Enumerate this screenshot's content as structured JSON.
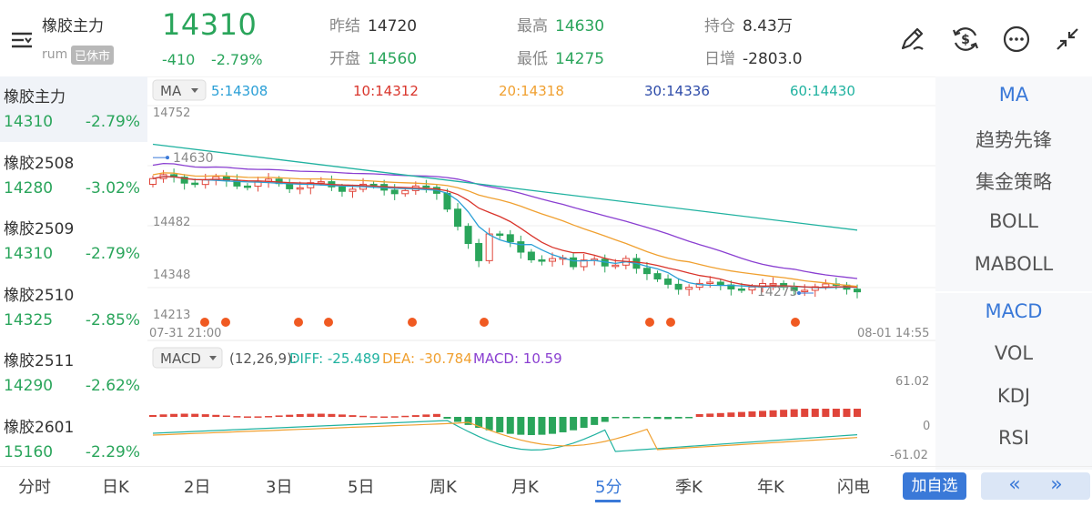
{
  "header": {
    "title": "橡胶主力",
    "code": "rum",
    "status_badge": "已休市",
    "price": "14310",
    "change": "-410",
    "change_pct": "-2.79%",
    "stats": {
      "prev_settle_label": "昨结",
      "prev_settle": "14720",
      "open_label": "开盘",
      "open": "14560",
      "high_label": "最高",
      "high": "14630",
      "low_label": "最低",
      "low": "14275",
      "oi_label": "持仓",
      "oi": "8.43万",
      "oi_chg_label": "日增",
      "oi_chg": "-2803.0"
    },
    "icons": [
      "draw-pen-icon",
      "currency-exchange-icon",
      "more-icon",
      "collapse-icon"
    ]
  },
  "contracts": [
    {
      "name": "橡胶主力",
      "price": "14310",
      "pct": "-2.79%",
      "active": true
    },
    {
      "name": "橡胶2508",
      "price": "14280",
      "pct": "-3.02%"
    },
    {
      "name": "橡胶2509",
      "price": "14310",
      "pct": "-2.79%"
    },
    {
      "name": "橡胶2510",
      "price": "14325",
      "pct": "-2.85%"
    },
    {
      "name": "橡胶2511",
      "price": "14290",
      "pct": "-2.62%"
    },
    {
      "name": "橡胶2601",
      "price": "15160",
      "pct": "-2.29%"
    }
  ],
  "main_chart": {
    "indicator_select": "MA",
    "ma5": "5:14308",
    "ma10": "10:14312",
    "ma20": "20:14318",
    "ma30": "30:14336",
    "ma60": "60:14430",
    "y_ticks": [
      "14752",
      "14482",
      "14348",
      "14213"
    ],
    "high_mark": "14630",
    "low_mark": "14275",
    "x_start": "07-31 21:00",
    "x_end": "08-01 14:55",
    "colors": {
      "ma5": "#2a9fd6",
      "ma10": "#d9342b",
      "ma20": "#f0a030",
      "ma30": "#8a3fd1",
      "ma60": "#20b2a0"
    }
  },
  "macd_chart": {
    "indicator_select": "MACD",
    "params": "(12,26,9):",
    "diff": "DIFF: -25.489",
    "dea": "DEA: -30.784",
    "macd": "MACD: 10.59",
    "y_top": "61.02",
    "y_mid": "0",
    "y_bottom": "-61.02"
  },
  "indicators_main": [
    "MA",
    "趋势先锋",
    "集金策略",
    "BOLL",
    "MABOLL"
  ],
  "indicators_sub": [
    "MACD",
    "VOL",
    "KDJ",
    "RSI"
  ],
  "timeframes": [
    "分时",
    "日K",
    "2日",
    "3日",
    "5日",
    "周K",
    "月K",
    "5分",
    "季K",
    "年K",
    "闪电"
  ],
  "active_timeframe": "5分",
  "add_favorite": "加自选",
  "nav_prev": "«",
  "nav_next": "»"
}
